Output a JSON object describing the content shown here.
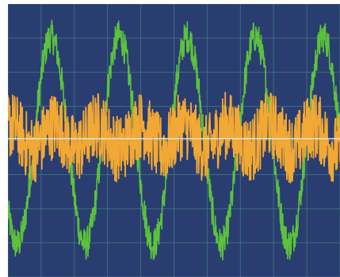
{
  "chart_data": {
    "type": "line",
    "title": "",
    "xlabel": "",
    "ylabel": "",
    "grid": true,
    "grid_divisions": {
      "x": 10,
      "y": 8
    },
    "xlim": [
      0,
      10
    ],
    "ylim": [
      -4,
      4
    ],
    "colors": {
      "background": "#2a3d70",
      "grid": "#3f7f83",
      "baseline": "#e8e8ee"
    },
    "series": [
      {
        "type": "noisy-sine",
        "color": "#5cc23c",
        "amplitude": 3.05,
        "offset": 0.0,
        "period": 2.05,
        "phase_x_peak": 1.3,
        "noise": 0.12,
        "values": [
          -1.6,
          2.8,
          3.1,
          -0.4,
          -3.0,
          -0.8,
          2.9,
          2.5,
          -1.9,
          -3.1,
          0.5,
          3.0,
          1.6,
          -2.6,
          -2.8,
          1.4,
          3.2,
          0.3,
          -3.1,
          -2.1,
          2.2
        ]
      },
      {
        "type": "noisy-sine",
        "color": "#f2a834",
        "amplitude": 0.35,
        "offset": 0.1,
        "period": 1.3,
        "phase_x_peak": 0.1,
        "noise": 0.25,
        "values": [
          0.4,
          0.2,
          -0.2,
          -0.1,
          0.3,
          0.5,
          0.1,
          -0.3,
          -0.2,
          0.2,
          0.4,
          0.0,
          -0.3,
          0.0,
          0.3,
          0.3,
          -0.1,
          -0.3,
          0.1,
          0.4,
          0.2
        ]
      }
    ]
  }
}
